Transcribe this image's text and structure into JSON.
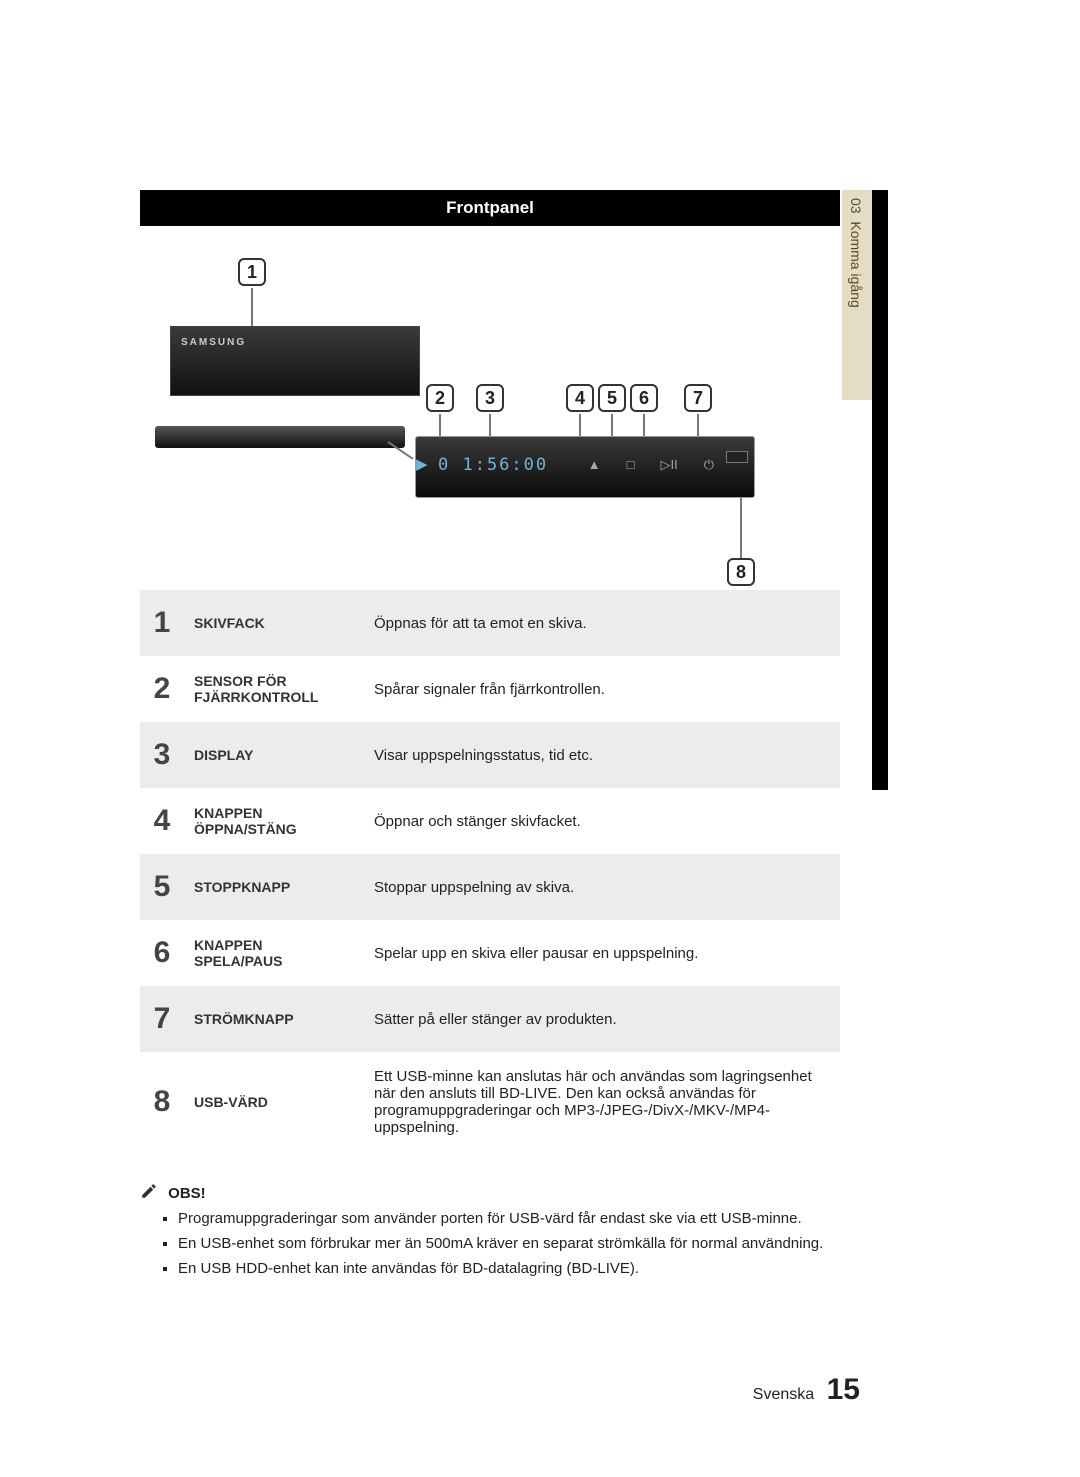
{
  "chapter": {
    "number": "03",
    "title": "Komma igång"
  },
  "header": {
    "title": "Frontpanel"
  },
  "diagram": {
    "brand": "SAMSUNG",
    "display_text": "0 1:56:00",
    "callouts": [
      "1",
      "2",
      "3",
      "4",
      "5",
      "6",
      "7",
      "8"
    ]
  },
  "table": {
    "rows": [
      {
        "num": "1",
        "label": "SKIVFACK",
        "desc": "Öppnas för att ta emot en skiva."
      },
      {
        "num": "2",
        "label": "SENSOR FÖR FJÄRRKONTROLL",
        "desc": "Spårar signaler från fjärrkontrollen."
      },
      {
        "num": "3",
        "label": "DISPLAY",
        "desc": "Visar uppspelningsstatus, tid etc."
      },
      {
        "num": "4",
        "label": "KNAPPEN ÖPPNA/STÄNG",
        "desc": "Öppnar och stänger skivfacket."
      },
      {
        "num": "5",
        "label": "STOPPKNAPP",
        "desc": "Stoppar uppspelning av skiva."
      },
      {
        "num": "6",
        "label": "KNAPPEN SPELA/PAUS",
        "desc": "Spelar upp en skiva eller pausar en uppspelning."
      },
      {
        "num": "7",
        "label": "STRÖMKNAPP",
        "desc": "Sätter på eller stänger av produkten."
      },
      {
        "num": "8",
        "label": "USB-VÄRD",
        "desc": "Ett USB-minne kan anslutas här och användas som lagringsenhet när den ansluts till BD-LIVE. Den kan också användas för programuppgraderingar och MP3-/JPEG-/DivX-/MKV-/MP4-uppspelning."
      }
    ]
  },
  "notes": {
    "heading": "OBS!",
    "items": [
      "Programuppgraderingar som använder porten för USB-värd får endast ske via ett USB-minne.",
      "En USB-enhet som förbrukar mer än 500mA kräver en separat strömkälla för normal användning.",
      "En USB HDD-enhet kan inte användas för BD-datalagring (BD-LIVE)."
    ]
  },
  "footer": {
    "lang": "Svenska",
    "page": "15"
  },
  "colors": {
    "tab_bg": "#e4dcc4",
    "tab_text": "#5a4a20",
    "row_odd": "#ececec",
    "display_text": "#6fb4d8"
  }
}
